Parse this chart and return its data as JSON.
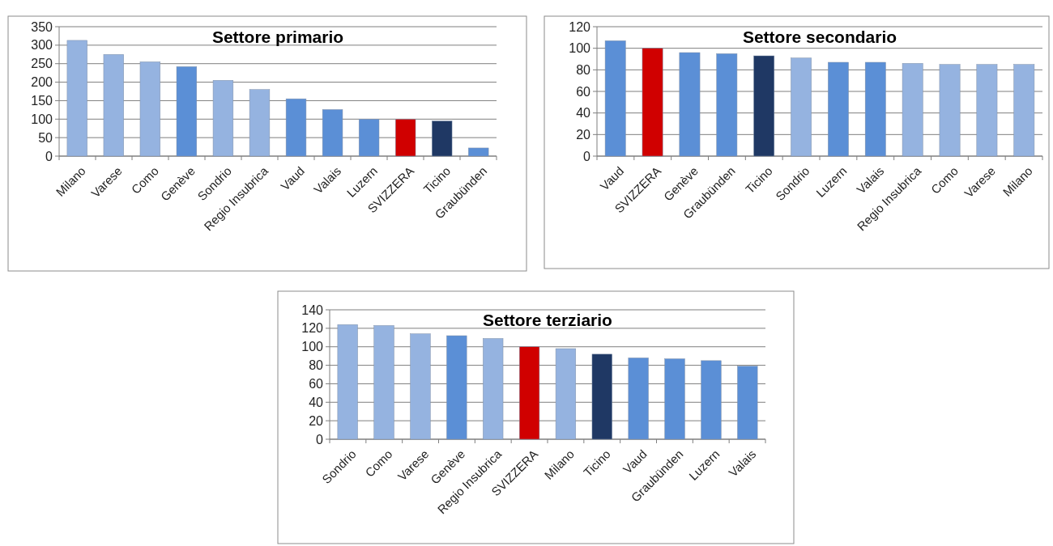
{
  "chart_data": [
    {
      "type": "bar",
      "title": "Settore primario",
      "categories": [
        "Milano",
        "Varese",
        "Como",
        "Genève",
        "Sondrio",
        "Regio Insubrica",
        "Vaud",
        "Valais",
        "Luzern",
        "SVIZZERA",
        "Ticino",
        "Graubünden"
      ],
      "values": [
        313,
        275,
        255,
        242,
        205,
        180,
        155,
        126,
        100,
        100,
        95,
        22
      ],
      "colors": [
        "#95b3e0",
        "#95b3e0",
        "#95b3e0",
        "#5b8fd6",
        "#95b3e0",
        "#95b3e0",
        "#5b8fd6",
        "#5b8fd6",
        "#5b8fd6",
        "#d00000",
        "#1f3864",
        "#5b8fd6"
      ],
      "ylim": [
        0,
        350
      ],
      "yticks": [
        0,
        50,
        100,
        150,
        200,
        250,
        300,
        350
      ],
      "grid": "y"
    },
    {
      "type": "bar",
      "title": "Settore secondario",
      "categories": [
        "Vaud",
        "SVIZZERA",
        "Genève",
        "Graubünden",
        "Ticino",
        "Sondrio",
        "Luzern",
        "Valais",
        "Regio Insubrica",
        "Como",
        "Varese",
        "Milano"
      ],
      "values": [
        107,
        100,
        96,
        95,
        93,
        91,
        87,
        87,
        86,
        85,
        85,
        85
      ],
      "colors": [
        "#5b8fd6",
        "#d00000",
        "#5b8fd6",
        "#5b8fd6",
        "#1f3864",
        "#95b3e0",
        "#5b8fd6",
        "#5b8fd6",
        "#95b3e0",
        "#95b3e0",
        "#95b3e0",
        "#95b3e0"
      ],
      "ylim": [
        0,
        120
      ],
      "yticks": [
        0,
        20,
        40,
        60,
        80,
        100,
        120
      ],
      "grid": "y"
    },
    {
      "type": "bar",
      "title": "Settore terziario",
      "categories": [
        "Sondrio",
        "Como",
        "Varese",
        "Genève",
        "Regio Insubrica",
        "SVIZZERA",
        "Milano",
        "Ticino",
        "Vaud",
        "Graubünden",
        "Luzern",
        "Valais"
      ],
      "values": [
        124,
        123,
        114,
        112,
        109,
        100,
        98,
        92,
        88,
        87,
        85,
        79
      ],
      "colors": [
        "#95b3e0",
        "#95b3e0",
        "#95b3e0",
        "#5b8fd6",
        "#95b3e0",
        "#d00000",
        "#95b3e0",
        "#1f3864",
        "#5b8fd6",
        "#5b8fd6",
        "#5b8fd6",
        "#5b8fd6"
      ],
      "ylim": [
        0,
        140
      ],
      "yticks": [
        0,
        20,
        40,
        60,
        80,
        100,
        120,
        140
      ],
      "grid": "y"
    }
  ]
}
